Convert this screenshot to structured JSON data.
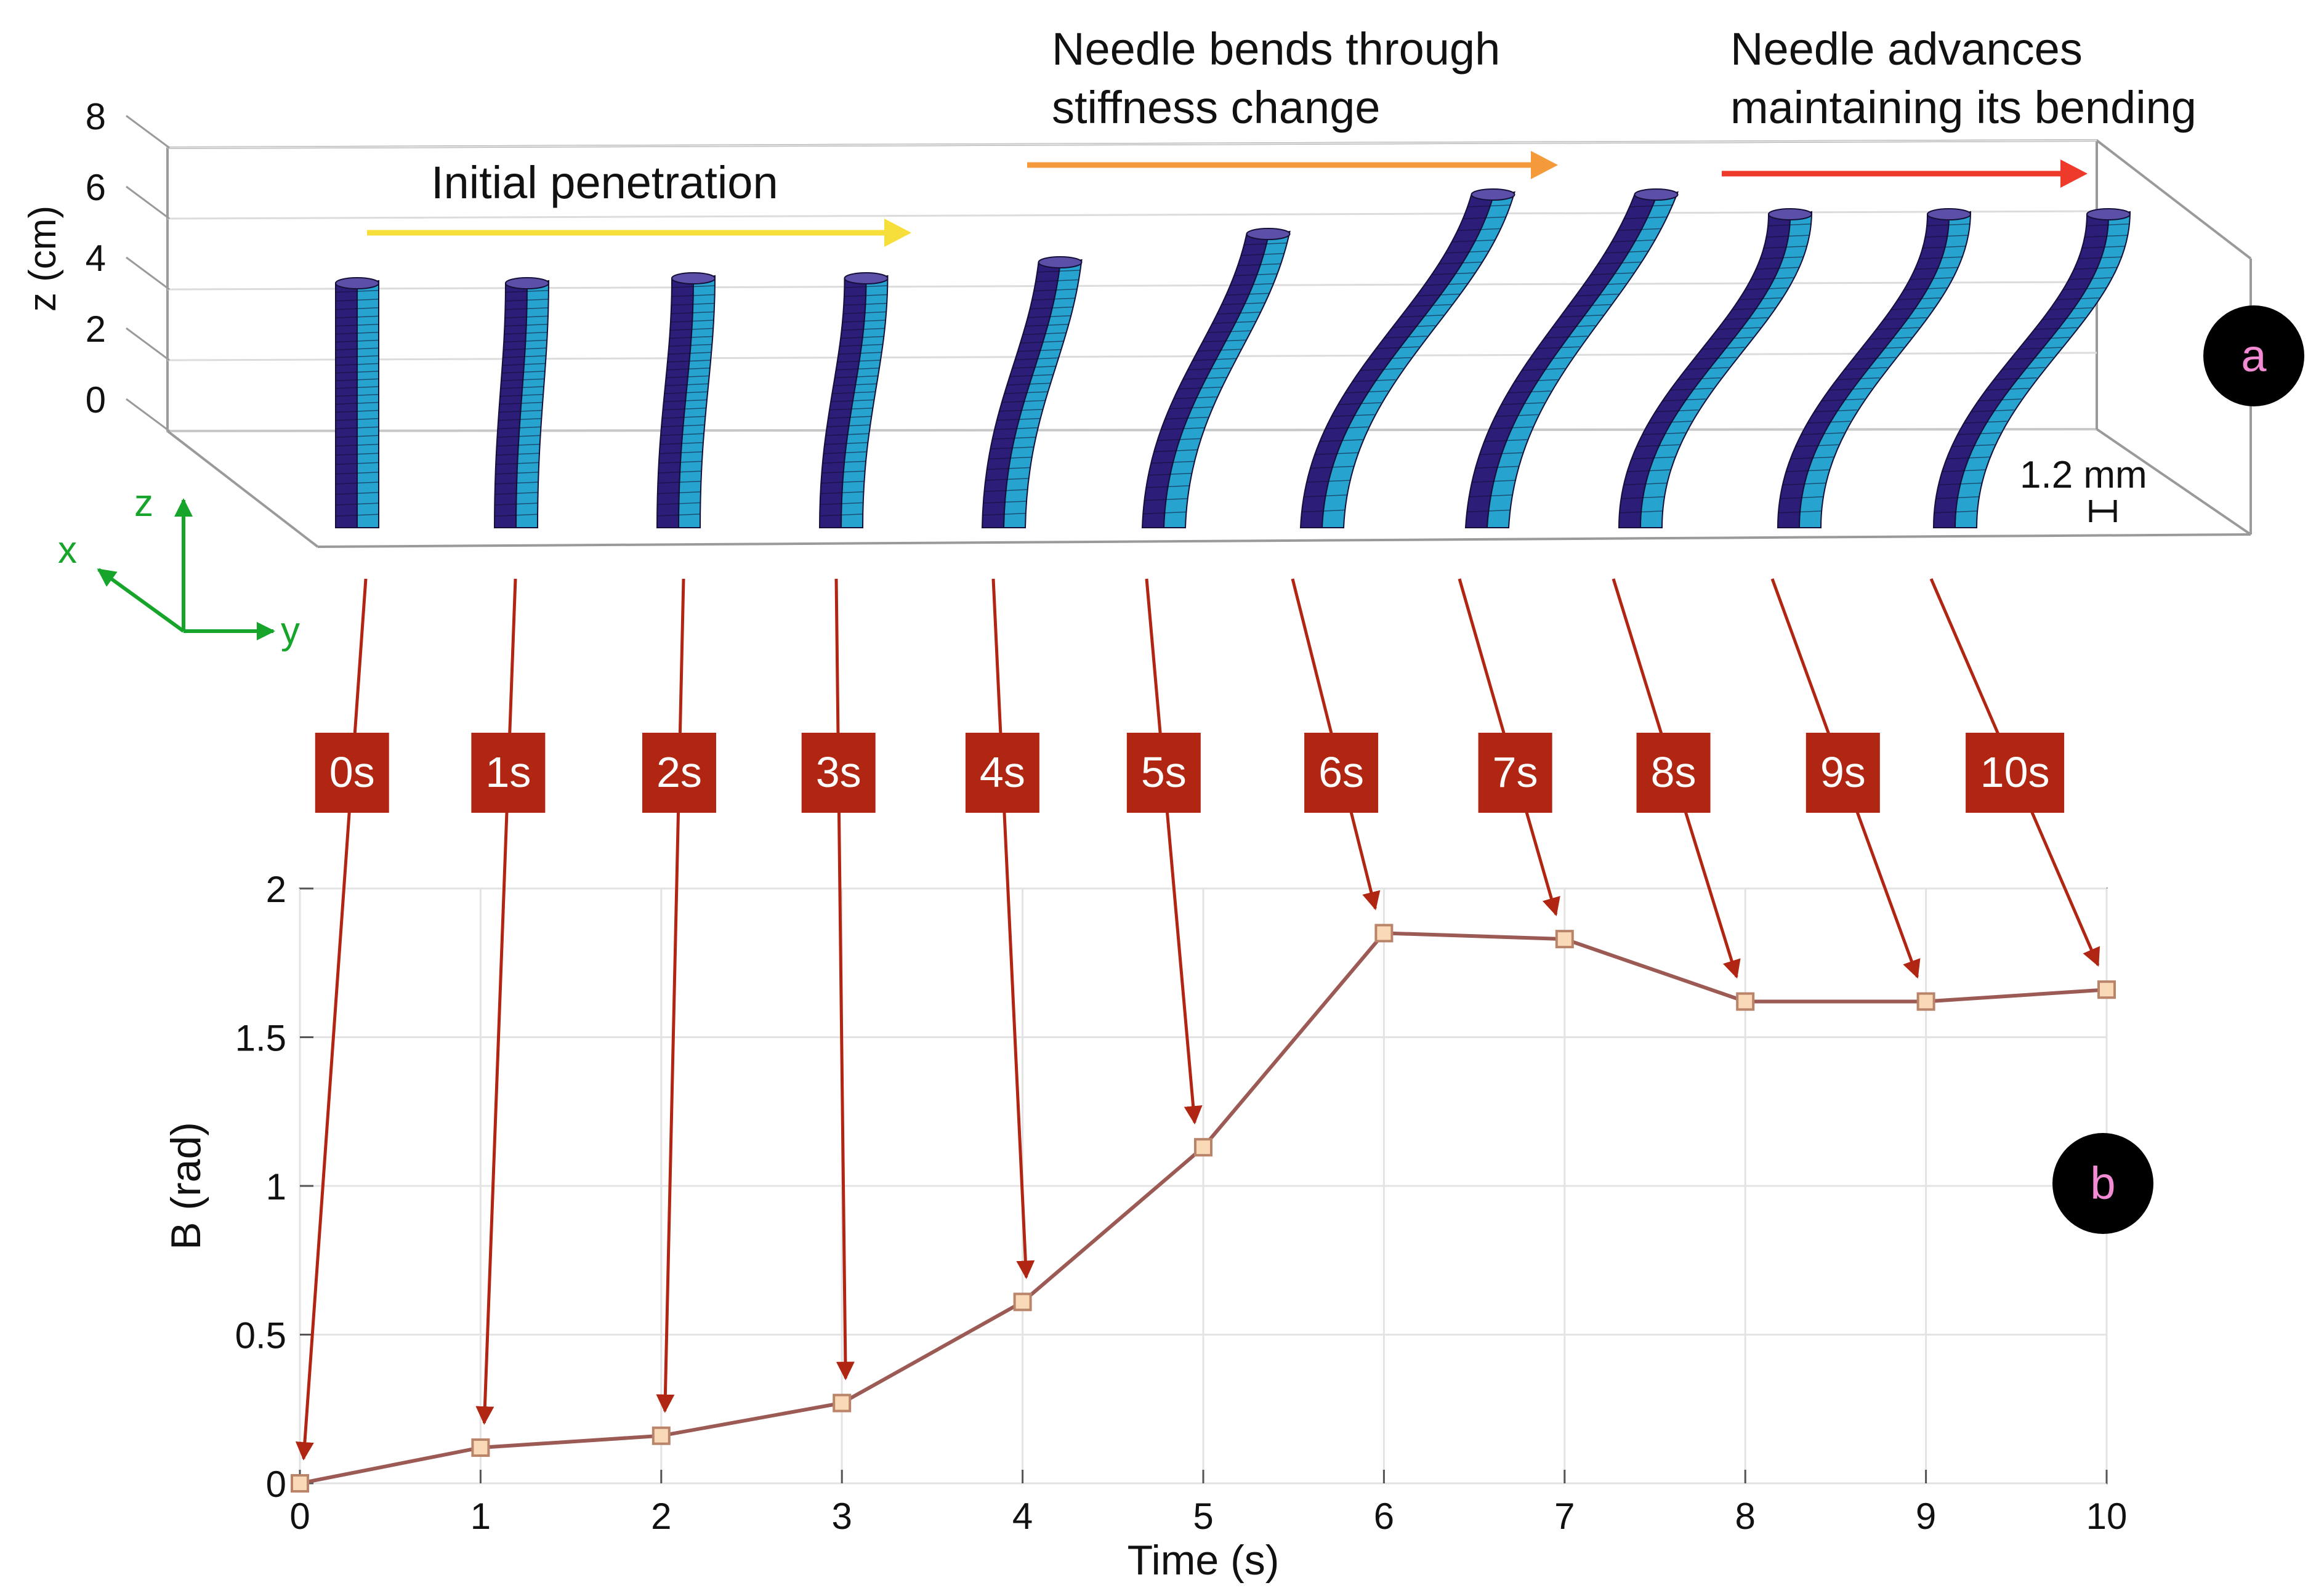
{
  "panel_a": {
    "badge": "a",
    "z_axis_label": "z (cm)",
    "z_ticks": [
      "0",
      "2",
      "4",
      "6",
      "8"
    ],
    "scale_bar_label": "1.2 mm",
    "axes_triad": {
      "z": "z",
      "x": "x",
      "y": "y"
    },
    "phases": [
      {
        "lines": [
          "Initial penetration"
        ],
        "arrow_color": "#f6df3a"
      },
      {
        "lines": [
          "Needle bends through",
          "stiffness change"
        ],
        "arrow_color": "#f59a3a"
      },
      {
        "lines": [
          "Needle advances",
          "maintaining its bending"
        ],
        "arrow_color": "#ee3a2b"
      }
    ],
    "needle_colors": {
      "dark": "#2c1d78",
      "light": "#27a3cf"
    },
    "time_labels": [
      "0s",
      "1s",
      "2s",
      "3s",
      "4s",
      "5s",
      "6s",
      "7s",
      "8s",
      "9s",
      "10s"
    ]
  },
  "colors": {
    "label_box": "#b02613",
    "callout_arrow": "#b02613",
    "line": "#9c5a55",
    "marker_fill": "#f9d9b6",
    "marker_edge": "#b9846a",
    "triad": "#16a52a",
    "badge_bg": "#000000",
    "badge_text": "#f28ad4"
  },
  "chart_data": {
    "type": "line",
    "badge": "b",
    "xlabel": "Time (s)",
    "ylabel": "B (rad)",
    "xlim": [
      0,
      10
    ],
    "ylim": [
      0,
      2
    ],
    "xticks": [
      0,
      1,
      2,
      3,
      4,
      5,
      6,
      7,
      8,
      9,
      10
    ],
    "yticks": [
      0,
      0.5,
      1,
      1.5,
      2
    ],
    "grid": true,
    "marker": "square",
    "series": [
      {
        "x": [
          0,
          1,
          2,
          3,
          4,
          5,
          6,
          7,
          8,
          9,
          10
        ],
        "values": [
          0.0,
          0.12,
          0.16,
          0.27,
          0.61,
          1.13,
          1.85,
          1.83,
          1.62,
          1.62,
          1.66
        ]
      }
    ]
  }
}
